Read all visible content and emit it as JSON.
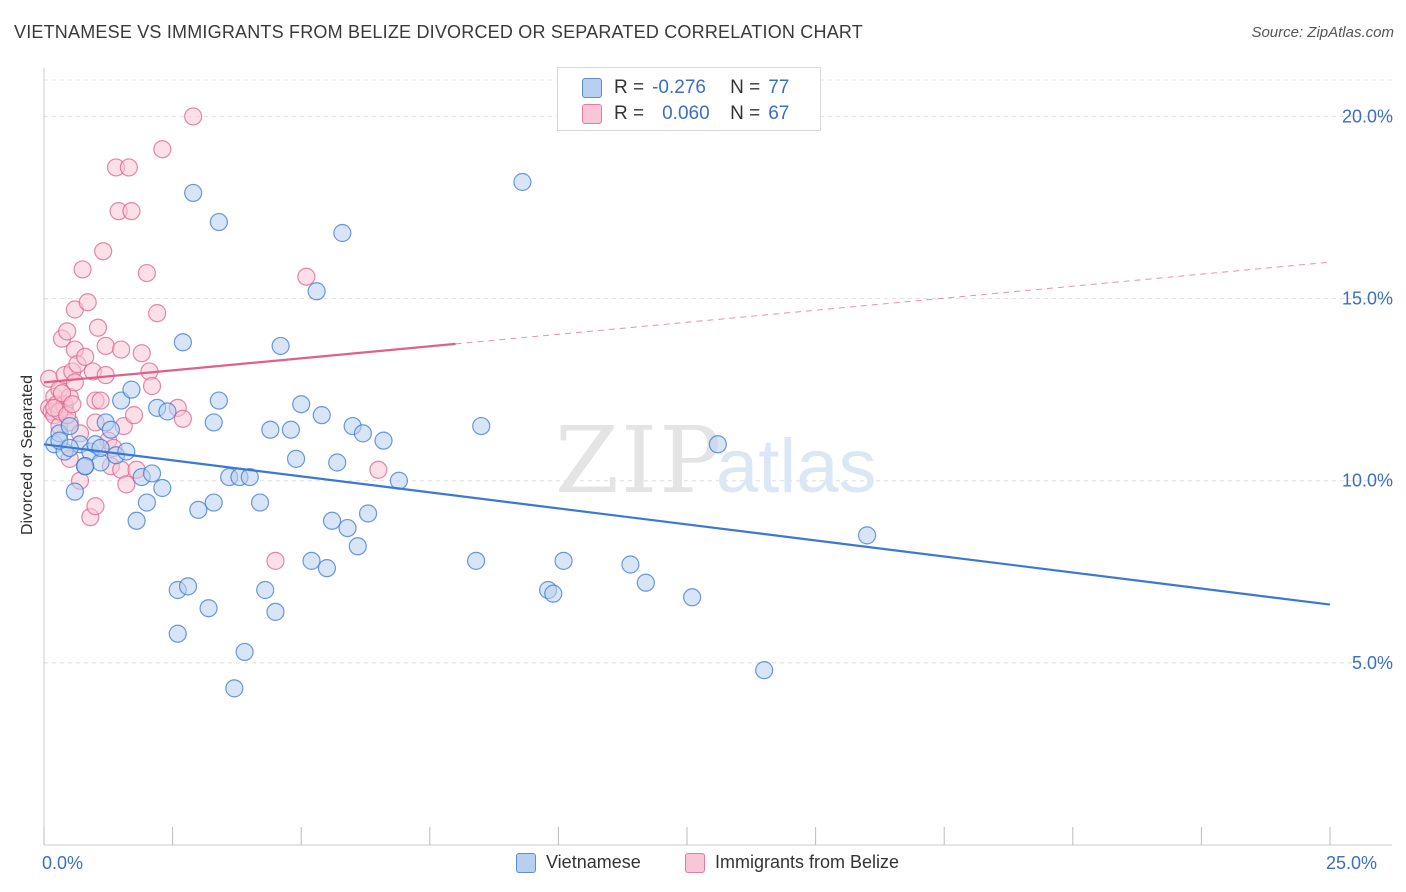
{
  "title": "VIETNAMESE VS IMMIGRANTS FROM BELIZE DIVORCED OR SEPARATED CORRELATION CHART",
  "source": "Source: ZipAtlas.com",
  "watermark": {
    "zip": "ZIP",
    "atlas": "atlas"
  },
  "legend": {
    "rows": [
      {
        "r_label": "R =",
        "r_value": "-0.276",
        "n_label": "N =",
        "n_value": "77",
        "color": "#5b8fd8",
        "fill": "#b8d0f0"
      },
      {
        "r_label": "R =",
        "r_value": "0.060",
        "n_label": "N =",
        "n_value": "67",
        "color": "#e87aa0",
        "fill": "#f8c6d6"
      }
    ]
  },
  "bottom_legend": [
    {
      "label": "Vietnamese",
      "fill": "#b8d0f0",
      "stroke": "#5b8fd8"
    },
    {
      "label": "Immigrants from Belize",
      "fill": "#f8c6d6",
      "stroke": "#e87aa0"
    }
  ],
  "x_axis": {
    "min_label": "0.0%",
    "max_label": "25.0%"
  },
  "chart_data": {
    "type": "scatter",
    "ylabel": "Divorced or Separated",
    "xlabel": "",
    "xlim": [
      0,
      25
    ],
    "ylim": [
      0,
      21
    ],
    "yticks": [
      5,
      10,
      15,
      20
    ],
    "ytick_labels": [
      "5.0%",
      "10.0%",
      "15.0%",
      "20.0%"
    ],
    "grid": true,
    "series": [
      {
        "name": "Vietnamese",
        "color": "#3a78d4",
        "fill": "#b8d0f0",
        "trend": {
          "x": [
            0,
            25
          ],
          "y": [
            11.0,
            6.6
          ],
          "dashed_from": null
        },
        "points": [
          [
            0.2,
            11.0
          ],
          [
            0.3,
            11.3
          ],
          [
            0.4,
            10.8
          ],
          [
            0.5,
            11.5
          ],
          [
            0.6,
            9.7
          ],
          [
            0.7,
            11.0
          ],
          [
            0.8,
            10.4
          ],
          [
            0.9,
            10.8
          ],
          [
            1.0,
            11.0
          ],
          [
            1.1,
            10.5
          ],
          [
            1.2,
            11.6
          ],
          [
            1.3,
            11.4
          ],
          [
            1.4,
            10.7
          ],
          [
            1.5,
            12.2
          ],
          [
            1.6,
            10.8
          ],
          [
            1.7,
            12.5
          ],
          [
            1.8,
            8.9
          ],
          [
            1.9,
            10.1
          ],
          [
            2.0,
            9.4
          ],
          [
            2.1,
            10.2
          ],
          [
            2.2,
            12.0
          ],
          [
            2.3,
            9.8
          ],
          [
            2.4,
            11.9
          ],
          [
            2.6,
            7.0
          ],
          [
            2.6,
            5.8
          ],
          [
            2.7,
            13.8
          ],
          [
            2.8,
            7.1
          ],
          [
            3.0,
            9.2
          ],
          [
            3.2,
            6.5
          ],
          [
            3.3,
            9.4
          ],
          [
            3.3,
            11.6
          ],
          [
            3.4,
            12.2
          ],
          [
            3.6,
            10.1
          ],
          [
            3.7,
            4.3
          ],
          [
            3.8,
            10.1
          ],
          [
            3.9,
            5.3
          ],
          [
            4.0,
            10.1
          ],
          [
            4.2,
            9.4
          ],
          [
            4.3,
            7.0
          ],
          [
            4.4,
            11.4
          ],
          [
            4.5,
            6.4
          ],
          [
            4.6,
            13.7
          ],
          [
            4.8,
            11.4
          ],
          [
            4.9,
            10.6
          ],
          [
            5.0,
            12.1
          ],
          [
            5.2,
            7.8
          ],
          [
            5.3,
            15.2
          ],
          [
            5.4,
            11.8
          ],
          [
            5.5,
            7.6
          ],
          [
            5.6,
            8.9
          ],
          [
            5.7,
            10.5
          ],
          [
            5.9,
            8.7
          ],
          [
            6.0,
            11.5
          ],
          [
            6.1,
            8.2
          ],
          [
            6.2,
            11.3
          ],
          [
            6.3,
            9.1
          ],
          [
            6.6,
            11.1
          ],
          [
            6.9,
            10.0
          ],
          [
            3.4,
            17.1
          ],
          [
            2.9,
            17.9
          ],
          [
            5.8,
            16.8
          ],
          [
            8.4,
            7.8
          ],
          [
            8.5,
            11.5
          ],
          [
            9.3,
            18.2
          ],
          [
            9.8,
            7.0
          ],
          [
            9.9,
            6.9
          ],
          [
            10.1,
            7.8
          ],
          [
            11.4,
            7.7
          ],
          [
            11.7,
            7.2
          ],
          [
            12.6,
            6.8
          ],
          [
            13.1,
            11.0
          ],
          [
            14.0,
            4.8
          ],
          [
            16.0,
            8.5
          ],
          [
            0.3,
            11.1
          ],
          [
            0.5,
            10.9
          ],
          [
            1.1,
            10.9
          ],
          [
            0.8,
            10.4
          ]
        ]
      },
      {
        "name": "Immigrants from Belize",
        "color": "#e0608c",
        "fill": "#f8c6d6",
        "trend": {
          "x": [
            0,
            25
          ],
          "y": [
            12.7,
            16.0
          ],
          "dashed_from": 8.0
        },
        "points": [
          [
            0.1,
            12.8
          ],
          [
            0.1,
            12.0
          ],
          [
            0.15,
            11.9
          ],
          [
            0.2,
            12.3
          ],
          [
            0.2,
            11.8
          ],
          [
            0.25,
            12.1
          ],
          [
            0.3,
            12.5
          ],
          [
            0.3,
            11.5
          ],
          [
            0.35,
            13.9
          ],
          [
            0.4,
            12.9
          ],
          [
            0.4,
            12.0
          ],
          [
            0.45,
            14.1
          ],
          [
            0.5,
            11.6
          ],
          [
            0.5,
            10.6
          ],
          [
            0.55,
            13.0
          ],
          [
            0.6,
            14.7
          ],
          [
            0.6,
            13.6
          ],
          [
            0.65,
            13.2
          ],
          [
            0.7,
            10.0
          ],
          [
            0.75,
            15.8
          ],
          [
            0.8,
            13.4
          ],
          [
            0.8,
            10.4
          ],
          [
            0.85,
            14.9
          ],
          [
            0.9,
            9.0
          ],
          [
            0.95,
            13.0
          ],
          [
            1.0,
            12.2
          ],
          [
            1.0,
            11.6
          ],
          [
            1.05,
            14.2
          ],
          [
            1.1,
            12.2
          ],
          [
            1.15,
            16.3
          ],
          [
            1.2,
            13.7
          ],
          [
            1.2,
            12.9
          ],
          [
            1.25,
            11.1
          ],
          [
            1.3,
            10.4
          ],
          [
            1.35,
            10.9
          ],
          [
            1.4,
            18.6
          ],
          [
            1.45,
            17.4
          ],
          [
            1.5,
            13.6
          ],
          [
            1.5,
            10.3
          ],
          [
            1.55,
            11.5
          ],
          [
            1.6,
            9.9
          ],
          [
            1.65,
            18.6
          ],
          [
            1.7,
            17.4
          ],
          [
            1.75,
            11.8
          ],
          [
            1.8,
            10.3
          ],
          [
            1.9,
            13.5
          ],
          [
            2.0,
            15.7
          ],
          [
            2.05,
            13.0
          ],
          [
            2.1,
            12.6
          ],
          [
            2.2,
            14.6
          ],
          [
            2.3,
            19.1
          ],
          [
            2.6,
            12.0
          ],
          [
            2.7,
            11.7
          ],
          [
            2.9,
            20.0
          ],
          [
            4.5,
            7.8
          ],
          [
            5.1,
            15.6
          ],
          [
            6.5,
            10.3
          ],
          [
            0.4,
            12.1
          ],
          [
            0.3,
            11.9
          ],
          [
            0.5,
            12.3
          ],
          [
            0.2,
            12.0
          ],
          [
            0.6,
            12.7
          ],
          [
            1.0,
            9.3
          ],
          [
            0.35,
            12.4
          ],
          [
            0.45,
            11.8
          ],
          [
            0.55,
            12.1
          ],
          [
            0.7,
            11.3
          ]
        ]
      }
    ]
  }
}
